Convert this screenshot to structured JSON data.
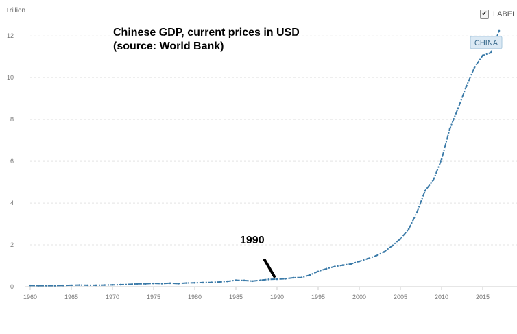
{
  "unit_label": "Trillion",
  "title_line1": "Chinese GDP, current prices in USD",
  "title_line2": "(source: World Bank)",
  "legend": {
    "checkbox_label": "LABEL",
    "checked": true,
    "check_glyph": "✔"
  },
  "annotation": {
    "text": "1990",
    "points_to_year": 1990
  },
  "colors": {
    "series": "#3a7aa8",
    "grid": "#e3e3e3",
    "axis": "#cccccc",
    "label_bg": "#dbe9f4",
    "label_border": "#a9c8de",
    "annotation_line": "#000000"
  },
  "chart_data": {
    "type": "line",
    "xlabel": "",
    "ylabel": "Trillion",
    "xlim": [
      1960,
      2018
    ],
    "ylim": [
      0,
      12.4
    ],
    "x_ticks": [
      1960,
      1965,
      1970,
      1975,
      1980,
      1985,
      1990,
      1995,
      2000,
      2005,
      2010,
      2015
    ],
    "y_ticks": [
      0,
      2,
      4,
      6,
      8,
      10,
      12
    ],
    "grid": true,
    "series": [
      {
        "name": "CHINA",
        "x": [
          1960,
          1961,
          1962,
          1963,
          1964,
          1965,
          1966,
          1967,
          1968,
          1969,
          1970,
          1971,
          1972,
          1973,
          1974,
          1975,
          1976,
          1977,
          1978,
          1979,
          1980,
          1981,
          1982,
          1983,
          1984,
          1985,
          1986,
          1987,
          1988,
          1989,
          1990,
          1991,
          1992,
          1993,
          1994,
          1995,
          1996,
          1997,
          1998,
          1999,
          2000,
          2001,
          2002,
          2003,
          2004,
          2005,
          2006,
          2007,
          2008,
          2009,
          2010,
          2011,
          2012,
          2013,
          2014,
          2015,
          2016,
          2017
        ],
        "values": [
          0.06,
          0.05,
          0.05,
          0.05,
          0.06,
          0.07,
          0.08,
          0.07,
          0.07,
          0.08,
          0.09,
          0.1,
          0.11,
          0.14,
          0.14,
          0.16,
          0.15,
          0.17,
          0.15,
          0.18,
          0.19,
          0.2,
          0.21,
          0.23,
          0.26,
          0.31,
          0.3,
          0.27,
          0.31,
          0.35,
          0.36,
          0.38,
          0.43,
          0.44,
          0.56,
          0.73,
          0.86,
          0.96,
          1.03,
          1.09,
          1.21,
          1.34,
          1.47,
          1.66,
          1.96,
          2.29,
          2.75,
          3.55,
          4.59,
          5.1,
          6.09,
          7.55,
          8.53,
          9.57,
          10.48,
          11.06,
          11.19,
          12.24
        ]
      }
    ],
    "series_label": "CHINA",
    "legend_position": "none"
  }
}
